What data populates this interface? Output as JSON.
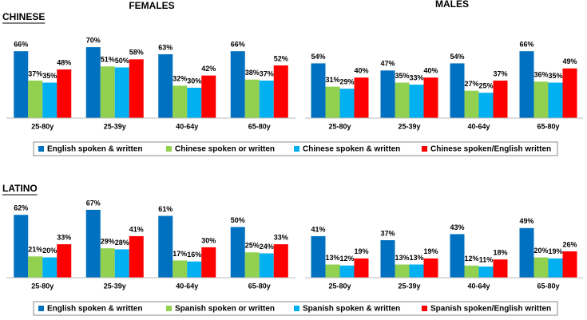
{
  "column_titles": [
    "FEMALES",
    "MALES"
  ],
  "chart_data": [
    {
      "type": "bar",
      "title": "CHINESE",
      "categories": [
        "25-80y",
        "25-39y",
        "40-64y",
        "65-80y",
        "25-80y",
        "25-39y",
        "40-64y",
        "65-80y"
      ],
      "series": [
        {
          "name": "English spoken & written",
          "color": "#0070c0",
          "values": [
            66,
            70,
            63,
            66,
            54,
            47,
            54,
            66
          ],
          "value_labels": [
            "66%",
            "70%",
            "63%",
            "66%",
            "54%",
            "47%",
            "54%",
            "66%"
          ]
        },
        {
          "name": "Chinese spoken or written",
          "color": "#92d050",
          "values": [
            37,
            51,
            32,
            38,
            31,
            35,
            27,
            36
          ],
          "value_labels": [
            "37%",
            "51%",
            "32%",
            "38%",
            "31%",
            "35%",
            "27%",
            "36%"
          ]
        },
        {
          "name": "Chinese spoken & written",
          "color": "#00b0f0",
          "values": [
            35,
            50,
            30,
            37,
            29,
            33,
            25,
            35
          ],
          "value_labels": [
            "35%",
            "50%",
            "30%",
            "37%",
            "29%",
            "33%",
            "25%",
            "35%"
          ]
        },
        {
          "name": "Chinese spoken/English written",
          "color": "#ff0000",
          "values": [
            48,
            58,
            42,
            52,
            40,
            40,
            37,
            49
          ],
          "value_labels": [
            "48%",
            "58%",
            "42%",
            "52%",
            "40%",
            "40%",
            "37%",
            "49%"
          ]
        }
      ]
    },
    {
      "type": "bar",
      "title": "LATINO",
      "categories": [
        "25-80y",
        "25-39y",
        "40-64y",
        "65-80y",
        "25-80y",
        "25-39y",
        "40-64y",
        "65-80y"
      ],
      "series": [
        {
          "name": "English spoken & written",
          "color": "#0070c0",
          "values": [
            62,
            67,
            61,
            50,
            41,
            37,
            43,
            49
          ],
          "value_labels": [
            "62%",
            "67%",
            "61%",
            "50%",
            "41%",
            "37%",
            "43%",
            "49%"
          ]
        },
        {
          "name": "Spanish spoken or written",
          "color": "#92d050",
          "values": [
            21,
            29,
            17,
            25,
            13,
            13,
            12,
            20
          ],
          "value_labels": [
            "21%",
            "29%",
            "17%",
            "25%",
            "13%",
            "13%",
            "12%",
            "20%"
          ]
        },
        {
          "name": "Spanish spoken & written",
          "color": "#00b0f0",
          "values": [
            20,
            28,
            16,
            24,
            12,
            13,
            11,
            19
          ],
          "value_labels": [
            "20%",
            "28%",
            "16%",
            "24%",
            "12%",
            "13%",
            "11%",
            "19%"
          ]
        },
        {
          "name": "Spanish spoken/English written",
          "color": "#ff0000",
          "values": [
            33,
            41,
            30,
            33,
            19,
            19,
            18,
            26
          ],
          "value_labels": [
            "33%",
            "41%",
            "30%",
            "33%",
            "19%",
            "19%",
            "18%",
            "26%"
          ]
        }
      ]
    }
  ]
}
